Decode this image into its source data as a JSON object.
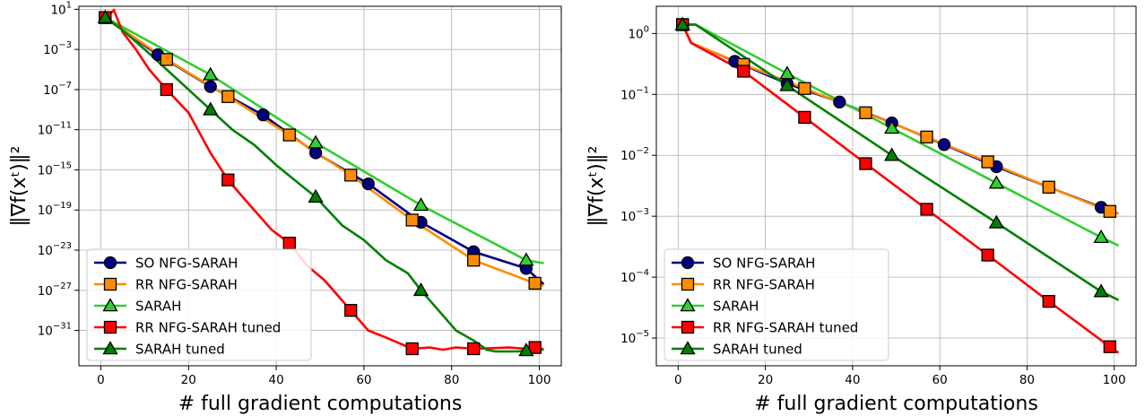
{
  "chart_data": [
    {
      "type": "line",
      "yscale": "log",
      "xlabel": "# full gradient computations",
      "ylabel": "‖∇f(xᵗ)‖²",
      "xlim": [
        -5,
        105
      ],
      "ylim": [
        3e-35,
        20
      ],
      "x_ticks": [
        0,
        20,
        40,
        60,
        80,
        100
      ],
      "x_tick_labels": [
        "0",
        "20",
        "40",
        "60",
        "80",
        "100"
      ],
      "y_ticks": [
        10,
        0.001,
        1e-07,
        1e-11,
        1e-15,
        1e-19,
        1e-23,
        1e-27,
        1e-31
      ],
      "y_tick_labels": [
        {
          "base": "10",
          "exp": "1"
        },
        {
          "base": "10",
          "exp": "−3"
        },
        {
          "base": "10",
          "exp": "−7"
        },
        {
          "base": "10",
          "exp": "−11"
        },
        {
          "base": "10",
          "exp": "−15"
        },
        {
          "base": "10",
          "exp": "−19"
        },
        {
          "base": "10",
          "exp": "−23"
        },
        {
          "base": "10",
          "exp": "−27"
        },
        {
          "base": "10",
          "exp": "−31"
        }
      ],
      "grid": true,
      "legend_position": "lower-left",
      "series": [
        {
          "name": "SO NFG-SARAH",
          "color": "#000080",
          "marker": "circle",
          "x": [
            1,
            13,
            25,
            37,
            49,
            61,
            73,
            85,
            97,
            101
          ],
          "y": [
            1.5,
            0.0003,
            2e-07,
            3e-10,
            5e-14,
            4e-17,
            6e-21,
            7e-24,
            1.5e-25,
            4e-27
          ]
        },
        {
          "name": "RR NFG-SARAH",
          "color": "#ff8c00",
          "marker": "square",
          "x": [
            1,
            15,
            29,
            43,
            57,
            71,
            85,
            99,
            101
          ],
          "y": [
            1.5,
            0.0001,
            2e-08,
            3e-12,
            3e-16,
            1e-20,
            1e-24,
            5e-27,
            3e-27
          ]
        },
        {
          "name": "SARAH",
          "color": "#32cd32",
          "marker": "triangle",
          "x": [
            1,
            25,
            49,
            73,
            97,
            101
          ],
          "y": [
            1.5,
            3e-06,
            5e-13,
            3e-19,
            1e-24,
            5e-25
          ]
        },
        {
          "name": "RR NFG-SARAH tuned",
          "color": "#ff0000",
          "marker": "square",
          "x": [
            1,
            3,
            5,
            8,
            11,
            15,
            20,
            25,
            29,
            34,
            39,
            43,
            47,
            51,
            57,
            61,
            65,
            71,
            75,
            78,
            81,
            85,
            89,
            93,
            97,
            99,
            101
          ],
          "y": [
            1.5,
            8,
            0.05,
            0.001,
            1e-05,
            1e-07,
            5e-10,
            5e-14,
            1e-16,
            3e-19,
            1e-21,
            5e-23,
            3e-25,
            1e-26,
            1e-29,
            1e-31,
            2e-32,
            1.5e-33,
            2e-33,
            1.2e-33,
            2e-33,
            1.5e-33,
            1.7e-33,
            2e-33,
            1.5e-33,
            2e-33,
            1.3e-33
          ]
        },
        {
          "name": "SARAH tuned",
          "color": "#008000",
          "marker": "triangle",
          "x": [
            1,
            5,
            10,
            15,
            20,
            25,
            30,
            35,
            40,
            45,
            49,
            55,
            60,
            65,
            70,
            73,
            77,
            81,
            85,
            88,
            90,
            95,
            97,
            101
          ],
          "y": [
            1.5,
            0.08,
            0.001,
            1e-05,
            1e-07,
            1e-09,
            1e-11,
            3e-13,
            3e-15,
            5e-17,
            2e-18,
            3e-21,
            1e-22,
            1e-24,
            5e-26,
            1e-27,
            1e-29,
            1e-31,
            1e-32,
            1.2e-33,
            8e-34,
            8e-34,
            1e-33,
            1.2e-33
          ]
        }
      ]
    },
    {
      "type": "line",
      "yscale": "log",
      "xlabel": "# full gradient computations",
      "ylabel": "‖∇f(xᵗ)‖²",
      "xlim": [
        -5,
        105
      ],
      "ylim": [
        3.5e-06,
        2.8
      ],
      "x_ticks": [
        0,
        20,
        40,
        60,
        80,
        100
      ],
      "x_tick_labels": [
        "0",
        "20",
        "40",
        "60",
        "80",
        "100"
      ],
      "y_ticks": [
        1,
        0.1,
        0.01,
        0.001,
        0.0001,
        1e-05
      ],
      "y_tick_labels": [
        {
          "base": "10",
          "exp": "0"
        },
        {
          "base": "10",
          "exp": "−1"
        },
        {
          "base": "10",
          "exp": "−2"
        },
        {
          "base": "10",
          "exp": "−3"
        },
        {
          "base": "10",
          "exp": "−4"
        },
        {
          "base": "10",
          "exp": "−5"
        }
      ],
      "grid": true,
      "legend_position": "lower-left",
      "series": [
        {
          "name": "SO NFG-SARAH",
          "color": "#000080",
          "marker": "circle",
          "x": [
            1,
            3,
            13,
            25,
            37,
            49,
            61,
            73,
            85,
            97,
            101
          ],
          "y": [
            1.4,
            0.7,
            0.35,
            0.15,
            0.075,
            0.034,
            0.015,
            0.0065,
            0.003,
            0.0014,
            0.0011
          ]
        },
        {
          "name": "RR NFG-SARAH",
          "color": "#ff8c00",
          "marker": "square",
          "x": [
            1,
            3,
            15,
            29,
            43,
            57,
            71,
            85,
            99,
            101
          ],
          "y": [
            1.4,
            0.7,
            0.31,
            0.125,
            0.05,
            0.02,
            0.0078,
            0.003,
            0.0012,
            0.0011
          ]
        },
        {
          "name": "SARAH",
          "color": "#32cd32",
          "marker": "triangle",
          "x": [
            1,
            4,
            25,
            49,
            73,
            97,
            101
          ],
          "y": [
            1.4,
            1.4,
            0.22,
            0.028,
            0.0035,
            0.00045,
            0.00033
          ]
        },
        {
          "name": "RR NFG-SARAH tuned",
          "color": "#ff0000",
          "marker": "square",
          "x": [
            1,
            3,
            15,
            29,
            43,
            57,
            71,
            85,
            99,
            101
          ],
          "y": [
            1.4,
            0.7,
            0.24,
            0.042,
            0.0073,
            0.0013,
            0.00023,
            4e-05,
            7.2e-06,
            5.7e-06
          ]
        },
        {
          "name": "SARAH tuned",
          "color": "#008000",
          "marker": "triangle",
          "x": [
            1,
            4,
            25,
            49,
            73,
            97,
            101
          ],
          "y": [
            1.4,
            1.4,
            0.14,
            0.01,
            0.00078,
            5.8e-05,
            4.2e-05
          ]
        }
      ]
    }
  ]
}
